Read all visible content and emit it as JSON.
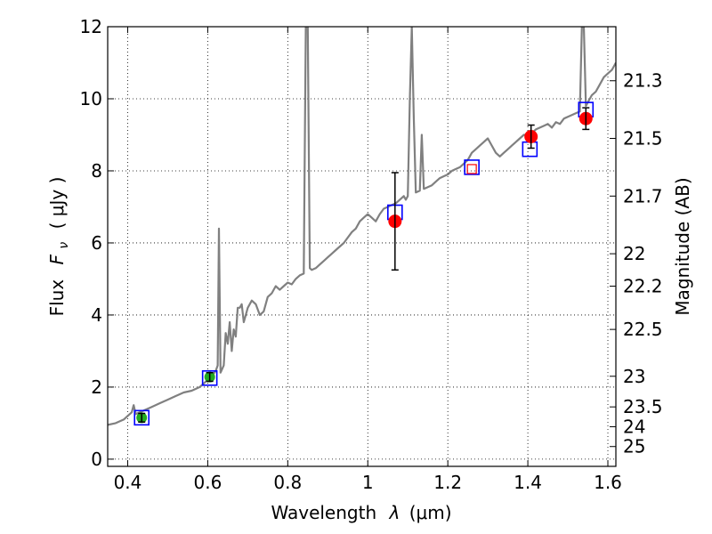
{
  "chart_data": {
    "type": "scatter",
    "title": "",
    "xlabel_prefix": "Wavelength",
    "xlabel_symbol": "λ",
    "xlabel_units": "(μm)",
    "ylabel_prefix": "Flux",
    "ylabel_symbol": "F",
    "ylabel_sub": "ν",
    "ylabel_units": "( μJy )",
    "y2label": "Magnitude (AB)",
    "xlim": [
      0.35,
      1.62
    ],
    "ylim": [
      -0.2,
      12
    ],
    "grid": true,
    "x_ticks": [
      0.4,
      0.6,
      0.8,
      1.0,
      1.2,
      1.4,
      1.6
    ],
    "x_tick_labels": [
      "0.4",
      "0.6",
      "0.8",
      "1",
      "1.2",
      "1.4",
      "1.6"
    ],
    "y_ticks": [
      0,
      2,
      4,
      6,
      8,
      10,
      12
    ],
    "y_tick_labels": [
      "0",
      "2",
      "4",
      "6",
      "8",
      "10",
      "12"
    ],
    "y2_ticks": [
      {
        "label": "21.3",
        "flux": 10.5
      },
      {
        "label": "21.5",
        "flux": 8.9
      },
      {
        "label": "21.7",
        "flux": 7.3
      },
      {
        "label": "22",
        "flux": 5.7
      },
      {
        "label": "22.2",
        "flux": 4.8
      },
      {
        "label": "22.5",
        "flux": 3.6
      },
      {
        "label": "23",
        "flux": 2.3
      },
      {
        "label": "23.5",
        "flux": 1.45
      },
      {
        "label": "24",
        "flux": 0.9
      },
      {
        "label": "25",
        "flux": 0.35
      }
    ],
    "series": [
      {
        "kind": "model-spectrum",
        "color": "#808080",
        "points": [
          [
            0.35,
            0.95
          ],
          [
            0.37,
            1.0
          ],
          [
            0.39,
            1.1
          ],
          [
            0.4,
            1.2
          ],
          [
            0.41,
            1.3
          ],
          [
            0.415,
            1.5
          ],
          [
            0.42,
            1.25
          ],
          [
            0.44,
            1.35
          ],
          [
            0.46,
            1.45
          ],
          [
            0.48,
            1.55
          ],
          [
            0.5,
            1.65
          ],
          [
            0.52,
            1.75
          ],
          [
            0.54,
            1.85
          ],
          [
            0.56,
            1.9
          ],
          [
            0.58,
            2.0
          ],
          [
            0.6,
            2.2
          ],
          [
            0.61,
            2.3
          ],
          [
            0.62,
            2.45
          ],
          [
            0.625,
            2.6
          ],
          [
            0.628,
            6.4
          ],
          [
            0.632,
            2.4
          ],
          [
            0.64,
            2.6
          ],
          [
            0.645,
            3.5
          ],
          [
            0.65,
            3.2
          ],
          [
            0.655,
            3.8
          ],
          [
            0.66,
            3.0
          ],
          [
            0.665,
            3.6
          ],
          [
            0.67,
            3.4
          ],
          [
            0.675,
            4.2
          ],
          [
            0.68,
            4.2
          ],
          [
            0.685,
            4.3
          ],
          [
            0.69,
            3.8
          ],
          [
            0.7,
            4.2
          ],
          [
            0.71,
            4.4
          ],
          [
            0.72,
            4.3
          ],
          [
            0.73,
            4.0
          ],
          [
            0.74,
            4.1
          ],
          [
            0.75,
            4.5
          ],
          [
            0.76,
            4.6
          ],
          [
            0.77,
            4.8
          ],
          [
            0.78,
            4.7
          ],
          [
            0.79,
            4.8
          ],
          [
            0.8,
            4.9
          ],
          [
            0.81,
            4.85
          ],
          [
            0.82,
            5.0
          ],
          [
            0.83,
            5.1
          ],
          [
            0.84,
            5.15
          ],
          [
            0.845,
            12.0
          ],
          [
            0.85,
            12.0
          ],
          [
            0.855,
            5.3
          ],
          [
            0.86,
            5.25
          ],
          [
            0.87,
            5.3
          ],
          [
            0.88,
            5.4
          ],
          [
            0.89,
            5.5
          ],
          [
            0.9,
            5.6
          ],
          [
            0.91,
            5.7
          ],
          [
            0.92,
            5.8
          ],
          [
            0.93,
            5.9
          ],
          [
            0.94,
            6.0
          ],
          [
            0.95,
            6.15
          ],
          [
            0.96,
            6.3
          ],
          [
            0.97,
            6.4
          ],
          [
            0.98,
            6.6
          ],
          [
            0.99,
            6.7
          ],
          [
            1.0,
            6.8
          ],
          [
            1.01,
            6.7
          ],
          [
            1.02,
            6.6
          ],
          [
            1.03,
            6.8
          ],
          [
            1.04,
            6.95
          ],
          [
            1.05,
            7.0
          ],
          [
            1.06,
            7.05
          ],
          [
            1.07,
            7.1
          ],
          [
            1.08,
            7.2
          ],
          [
            1.09,
            7.3
          ],
          [
            1.095,
            7.2
          ],
          [
            1.1,
            7.3
          ],
          [
            1.105,
            10.0
          ],
          [
            1.11,
            12.0
          ],
          [
            1.115,
            9.5
          ],
          [
            1.12,
            7.4
          ],
          [
            1.13,
            7.45
          ],
          [
            1.135,
            9.0
          ],
          [
            1.14,
            7.5
          ],
          [
            1.15,
            7.55
          ],
          [
            1.16,
            7.6
          ],
          [
            1.17,
            7.7
          ],
          [
            1.18,
            7.8
          ],
          [
            1.19,
            7.85
          ],
          [
            1.2,
            7.9
          ],
          [
            1.21,
            8.0
          ],
          [
            1.22,
            8.05
          ],
          [
            1.23,
            8.1
          ],
          [
            1.24,
            8.2
          ],
          [
            1.25,
            8.3
          ],
          [
            1.26,
            8.5
          ],
          [
            1.27,
            8.6
          ],
          [
            1.28,
            8.7
          ],
          [
            1.29,
            8.8
          ],
          [
            1.3,
            8.9
          ],
          [
            1.31,
            8.7
          ],
          [
            1.32,
            8.5
          ],
          [
            1.33,
            8.4
          ],
          [
            1.34,
            8.5
          ],
          [
            1.35,
            8.6
          ],
          [
            1.36,
            8.7
          ],
          [
            1.37,
            8.8
          ],
          [
            1.38,
            8.9
          ],
          [
            1.39,
            9.0
          ],
          [
            1.4,
            9.0
          ],
          [
            1.41,
            9.05
          ],
          [
            1.42,
            9.15
          ],
          [
            1.43,
            9.2
          ],
          [
            1.44,
            9.25
          ],
          [
            1.45,
            9.3
          ],
          [
            1.46,
            9.2
          ],
          [
            1.47,
            9.35
          ],
          [
            1.48,
            9.3
          ],
          [
            1.49,
            9.45
          ],
          [
            1.5,
            9.5
          ],
          [
            1.51,
            9.55
          ],
          [
            1.52,
            9.6
          ],
          [
            1.53,
            9.65
          ],
          [
            1.535,
            12.0
          ],
          [
            1.54,
            12.0
          ],
          [
            1.545,
            9.8
          ],
          [
            1.55,
            9.9
          ],
          [
            1.56,
            10.1
          ],
          [
            1.57,
            10.2
          ],
          [
            1.58,
            10.4
          ],
          [
            1.59,
            10.6
          ],
          [
            1.6,
            10.7
          ],
          [
            1.61,
            10.8
          ],
          [
            1.62,
            11.0
          ]
        ]
      },
      {
        "kind": "model-photometry",
        "marker": "open-square",
        "color": "#0000ff",
        "points": [
          [
            0.435,
            1.15
          ],
          [
            0.605,
            2.25
          ],
          [
            1.068,
            6.85
          ],
          [
            1.26,
            8.1
          ],
          [
            1.405,
            8.6
          ],
          [
            1.545,
            9.7
          ]
        ]
      },
      {
        "kind": "observed-optical",
        "marker": "circle",
        "color": "#22aa22",
        "points": [
          {
            "x": 0.435,
            "y": 1.15,
            "err": 0.12
          },
          {
            "x": 0.605,
            "y": 2.28,
            "err": 0.12
          }
        ]
      },
      {
        "kind": "observed-nir",
        "marker": "circle",
        "color": "#ff0000",
        "points": [
          {
            "x": 1.068,
            "y": 6.6,
            "err": 1.35
          },
          {
            "x": 1.408,
            "y": 8.95,
            "err": 0.32
          },
          {
            "x": 1.545,
            "y": 9.45,
            "err": 0.3
          }
        ]
      },
      {
        "kind": "upper-limit",
        "marker": "small-open-square",
        "color": "#ff0000",
        "points": [
          [
            1.26,
            8.05
          ]
        ]
      }
    ]
  }
}
